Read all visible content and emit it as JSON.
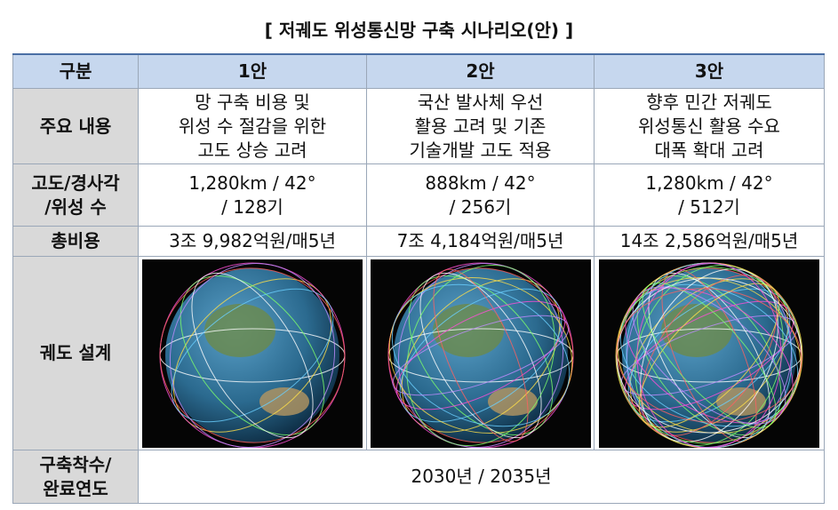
{
  "title": "[ 저궤도 위성통신망 구축 시나리오(안) ]",
  "table": {
    "header": [
      "구분",
      "1안",
      "2안",
      "3안"
    ],
    "rows": [
      {
        "label": [
          "주요 내용"
        ],
        "cells": [
          [
            "망 구축 비용 및",
            "위성 수 절감을 위한",
            "고도 상승 고려"
          ],
          [
            "국산 발사체 우선",
            "활용 고려 및 기존",
            "기술개발 고도 적용"
          ],
          [
            "향후 민간 저궤도",
            "위성통신 활용 수요",
            "대폭 확대 고려"
          ]
        ]
      },
      {
        "label": [
          "고도/경사각",
          "/위성 수"
        ],
        "cells": [
          [
            "1,280km / 42°",
            "/ 128기"
          ],
          [
            "888km / 42°",
            "/ 256기"
          ],
          [
            "1,280km / 42°",
            "/ 512기"
          ]
        ]
      },
      {
        "label": [
          "총비용"
        ],
        "cells": [
          [
            "3조 9,982억원/매5년"
          ],
          [
            "7조 4,184억원/매5년"
          ],
          [
            "14조 2,586억원/매5년"
          ]
        ]
      },
      {
        "label": [
          "궤도 설계"
        ]
      },
      {
        "label": [
          "구축착수/",
          "완료연도"
        ],
        "cells": [
          [
            "2030년 / 2035년"
          ]
        ]
      }
    ]
  }
}
